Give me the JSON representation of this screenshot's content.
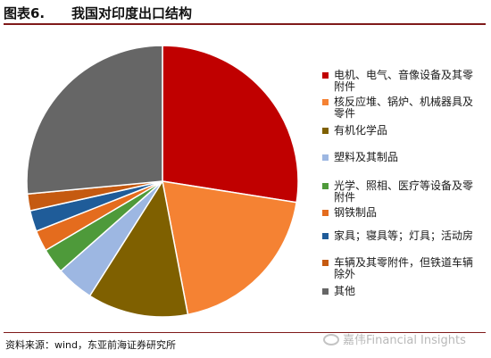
{
  "header": {
    "figure_label": "图表6.",
    "figure_title": "我国对印度出口结构"
  },
  "source": "资料来源：wind，东亚前海证券研究所",
  "watermark": "嘉伟Financial Insights",
  "chart_data": {
    "type": "pie",
    "title": "我国对印度出口结构",
    "legend_position": "right",
    "start_angle_deg": 0,
    "direction": "clockwise",
    "slices": [
      {
        "label": "电机、电气、音像设备及其零附件",
        "value": 27.5,
        "color": "#C00000"
      },
      {
        "label": "核反应堆、锅炉、机械器具及零件",
        "value": 19.5,
        "color": "#F58233"
      },
      {
        "label": "有机化学品",
        "value": 12.0,
        "color": "#7F6000"
      },
      {
        "label": "塑料及其制品",
        "value": 4.5,
        "color": "#9DB7E2"
      },
      {
        "label": "光学、照相、医疗等设备及零附件",
        "value": 3.0,
        "color": "#4E9A3A"
      },
      {
        "label": "钢铁制品",
        "value": 2.5,
        "color": "#E46C1E"
      },
      {
        "label": "家具；寝具等；灯具；活动房",
        "value": 2.5,
        "color": "#1F5C99"
      },
      {
        "label": "车辆及其零附件，但铁道车辆除外",
        "value": 2.0,
        "color": "#C55A11"
      },
      {
        "label": "其他",
        "value": 26.5,
        "color": "#666666"
      }
    ]
  }
}
